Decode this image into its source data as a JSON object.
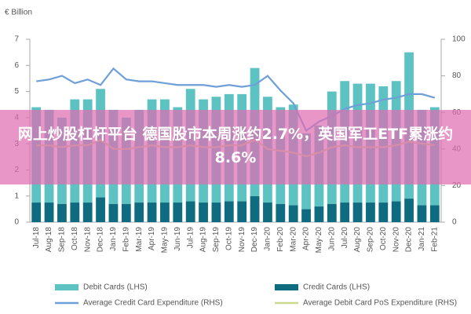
{
  "overlay_text": "网上炒股杠杆平台 德国股市本周涨约2.7%，英国军工ETF累涨约8.6%",
  "chart_data": {
    "type": "bar",
    "stacked": true,
    "y_label": "€ Billion",
    "categories": [
      "Jul-18",
      "Aug-18",
      "Sep-18",
      "Oct-18",
      "Nov-18",
      "Dec-18",
      "Jan-19",
      "Feb-19",
      "Mar-19",
      "Apr-19",
      "May-19",
      "Jun-19",
      "Jul-19",
      "Aug-19",
      "Sep-19",
      "Oct-19",
      "Nov-19",
      "Dec-19",
      "Jan-20",
      "Feb-20",
      "Mar-20",
      "Apr-20",
      "May-20",
      "Jun-20",
      "Jul-20",
      "Aug-20",
      "Sep-20",
      "Oct-20",
      "Nov-20",
      "Dec-20",
      "Jan-21",
      "Feb-21"
    ],
    "series": [
      {
        "name": "Credit Cards (LHS)",
        "color": "#0f6b80",
        "values": [
          0.75,
          0.75,
          0.7,
          0.75,
          0.75,
          0.95,
          0.7,
          0.7,
          0.75,
          0.75,
          0.75,
          0.75,
          0.8,
          0.75,
          0.75,
          0.8,
          0.8,
          1.0,
          0.75,
          0.7,
          0.65,
          0.5,
          0.6,
          0.7,
          0.75,
          0.75,
          0.75,
          0.75,
          0.8,
          0.9,
          0.65,
          0.65
        ]
      },
      {
        "name": "Debit Cards (LHS)",
        "color": "#5cc3c2",
        "values": [
          3.65,
          3.55,
          3.3,
          3.95,
          3.95,
          4.15,
          3.6,
          3.3,
          3.55,
          3.95,
          3.95,
          3.65,
          4.3,
          3.95,
          4.05,
          4.1,
          4.1,
          4.9,
          4.05,
          3.7,
          3.85,
          2.9,
          3.1,
          4.3,
          4.65,
          4.55,
          4.55,
          4.45,
          4.6,
          5.6,
          3.65,
          3.75
        ]
      },
      {
        "name": "Average Credit Card Expenditure (RHS)",
        "color": "#6f9fd8",
        "axis": "y2",
        "line": true,
        "values": [
          77,
          78,
          80,
          76,
          78,
          75,
          84,
          78,
          77,
          77,
          76,
          75,
          75,
          75,
          74,
          75,
          74,
          75,
          80,
          72,
          65,
          50,
          55,
          58,
          62,
          64,
          65,
          67,
          68,
          70,
          70,
          68
        ]
      },
      {
        "name": "Average Debit Card PoS Expenditure (RHS)",
        "color": "#c9dc8e",
        "axis": "y2",
        "line": true,
        "values": [
          42,
          42,
          41,
          42,
          42,
          45,
          40,
          40,
          41,
          42,
          41,
          41,
          42,
          41,
          41,
          42,
          42,
          45,
          40,
          39,
          38,
          36,
          38,
          41,
          42,
          41,
          41,
          41,
          42,
          44,
          43,
          42
        ]
      }
    ],
    "ylim": [
      0,
      7
    ],
    "yticks": [
      0,
      1,
      2,
      3,
      4,
      5,
      6,
      7
    ],
    "y2lim": [
      0,
      100
    ],
    "y2ticks": [
      0,
      20,
      40,
      60,
      80,
      100
    ],
    "legend": "bottom"
  }
}
